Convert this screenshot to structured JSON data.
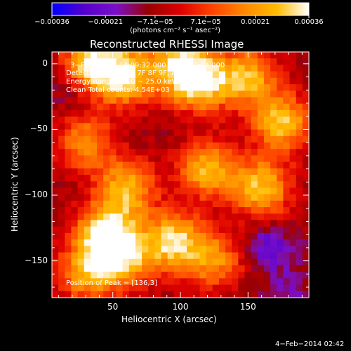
{
  "chart_data": {
    "type": "heatmap",
    "title": "Reconstructed RHESSI Image",
    "xlabel": "Heliocentric X (arcsec)",
    "ylabel": "Heliocentric Y (arcsec)",
    "xlim": [
      5,
      195
    ],
    "ylim": [
      -178,
      9
    ],
    "x_ticks": [
      50,
      100,
      150
    ],
    "x_ticklabels": [
      "50",
      "100",
      "150"
    ],
    "y_ticks": [
      0,
      -50,
      -100,
      -150
    ],
    "y_ticklabels": [
      "0",
      "−50",
      "−100",
      "−150"
    ],
    "colorbar": {
      "min": -0.00036,
      "max": 0.00036,
      "ticks": [
        -0.00036,
        -0.00021,
        -7.1e-05,
        7.1e-05,
        0.00021,
        0.00036
      ],
      "ticklabels": [
        "−0.00036",
        "−0.00021",
        "−7.1e−05",
        "7.1e−05",
        "0.00021",
        "0.00036"
      ],
      "units": "(photons cm⁻² s⁻¹ asec⁻²)",
      "colors": [
        "#0000ff",
        "#5500cc",
        "#7a10c8",
        "#990000",
        "#dd0000",
        "#ff4400",
        "#ff8800",
        "#ffbb00",
        "#ffffff"
      ]
    },
    "annotations": {
      "time_range": "3−Feb−2014 14:09:32.000 to 14:12:24.000",
      "detectors": "Detectors: 3F 5F 6F 7F 8F 9F, Att 0",
      "energy": "Energy Range: 12.0 − 25.0 keV",
      "clean": "Clean     Total counts: 4.54E+03",
      "peak": "Position of Peak = [136,3]"
    },
    "grid": false,
    "hotspots": [
      {
        "x": 35,
        "y": 0,
        "level": 0.85
      },
      {
        "x": 60,
        "y": -10,
        "level": 0.75
      },
      {
        "x": 100,
        "y": 0,
        "level": 0.7
      },
      {
        "x": 115,
        "y": -15,
        "level": 0.75
      },
      {
        "x": 150,
        "y": -10,
        "level": 0.7
      },
      {
        "x": 175,
        "y": -45,
        "level": 0.75
      },
      {
        "x": 30,
        "y": -60,
        "level": 0.55
      },
      {
        "x": 120,
        "y": -80,
        "level": 0.7
      },
      {
        "x": 160,
        "y": -95,
        "level": 0.75
      },
      {
        "x": 60,
        "y": -95,
        "level": 0.7
      },
      {
        "x": 45,
        "y": -130,
        "level": 0.95
      },
      {
        "x": 95,
        "y": -135,
        "level": 0.8
      },
      {
        "x": 125,
        "y": -150,
        "level": 0.55
      },
      {
        "x": 60,
        "y": -150,
        "level": 0.6
      },
      {
        "x": 30,
        "y": -160,
        "level": 0.6
      }
    ],
    "coldspots": [
      {
        "x": 165,
        "y": -140,
        "level": 0.9
      },
      {
        "x": 20,
        "y": -20,
        "level": 0.4
      },
      {
        "x": 180,
        "y": -170,
        "level": 0.4
      }
    ]
  },
  "footer": {
    "timestamp": "4−Feb−2014 02:42"
  }
}
